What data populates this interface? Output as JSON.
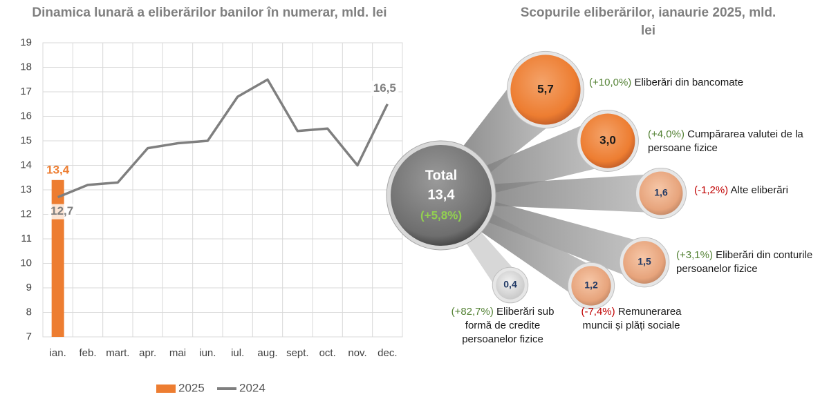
{
  "chart_data": [
    {
      "type": "bar_line",
      "title": "Dinamica lunară a eliberărilor banilor în numerar, mld. lei",
      "categories": [
        "ian.",
        "feb.",
        "mart.",
        "apr.",
        "mai",
        "iun.",
        "iul.",
        "aug.",
        "sept.",
        "oct.",
        "nov.",
        "dec."
      ],
      "series": [
        {
          "name": "2025",
          "type": "bar",
          "color": "#ed7d31",
          "values": [
            13.4,
            null,
            null,
            null,
            null,
            null,
            null,
            null,
            null,
            null,
            null,
            null
          ],
          "value_labels": [
            "13,4",
            null,
            null,
            null,
            null,
            null,
            null,
            null,
            null,
            null,
            null,
            null
          ]
        },
        {
          "name": "2024",
          "type": "line",
          "color": "#7f7f7f",
          "values": [
            12.7,
            13.2,
            13.3,
            14.7,
            14.9,
            15.0,
            16.8,
            17.5,
            15.4,
            15.5,
            14.0,
            16.5
          ],
          "value_labels": [
            "12,7",
            null,
            null,
            null,
            null,
            null,
            null,
            null,
            null,
            null,
            null,
            "16,5"
          ]
        }
      ],
      "ylim": [
        7,
        19
      ],
      "yticks": [
        7,
        8,
        9,
        10,
        11,
        12,
        13,
        14,
        15,
        16,
        17,
        18,
        19
      ],
      "grid": true,
      "legend": "bottom"
    },
    {
      "type": "bubble",
      "title": "Scopurile eliberărilor, ianaurie 2025, mld. lei",
      "total_label": "Total",
      "total": 13.4,
      "total_value_label": "13,4",
      "total_change": 5.8,
      "total_change_label": "(+5,8%)",
      "categories": [
        "Eliberări din bancomate",
        "Cumpărarea valutei de la persoane fizice",
        "Alte eliberări",
        "Eliberări din conturile persoanelor fizice",
        "Remunerarea muncii și plăți sociale",
        "Eliberări sub formă de credite persoanelor fizice"
      ],
      "values": [
        5.7,
        3.0,
        1.6,
        1.5,
        1.2,
        0.4
      ],
      "value_labels": [
        "5,7",
        "3,0",
        "1,6",
        "1,5",
        "1,2",
        "0,4"
      ],
      "changes": [
        10.0,
        4.0,
        -1.2,
        3.1,
        -7.4,
        82.7
      ],
      "change_labels": [
        "(+10,0%)",
        "(+4,0%)",
        "(-1,2%)",
        "(+3,1%)",
        "(-7,4%)",
        "(+82,7%)"
      ]
    }
  ]
}
